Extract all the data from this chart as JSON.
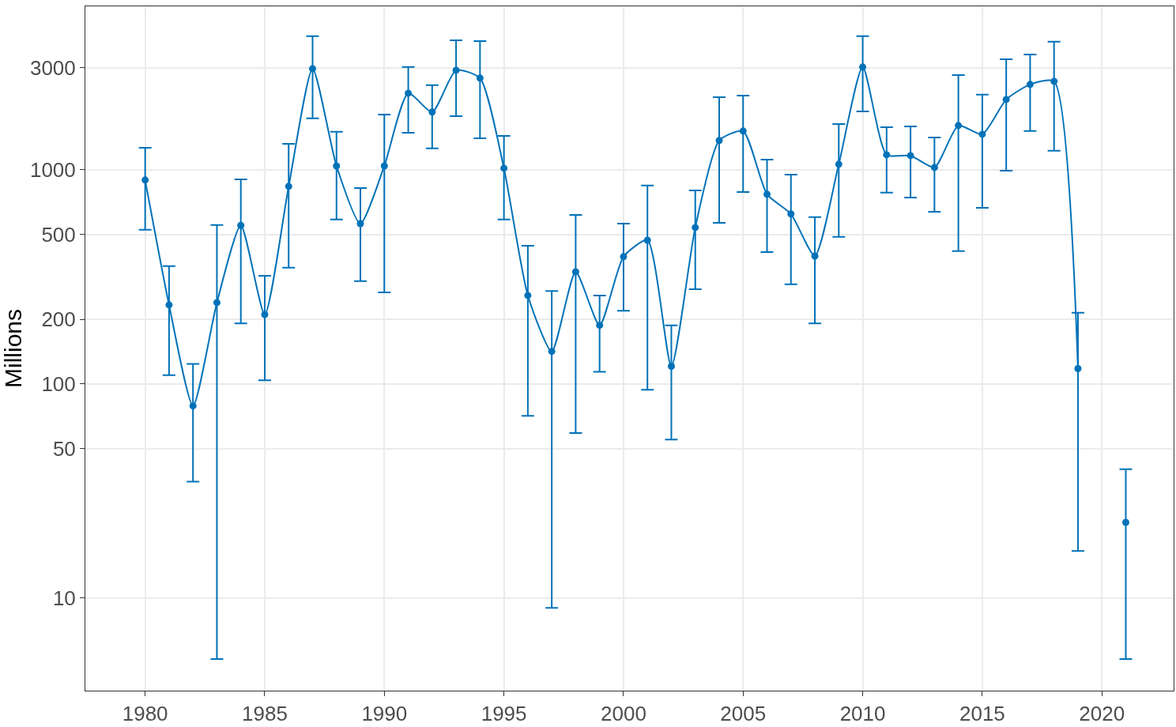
{
  "chart_data": {
    "type": "line",
    "ylabel": "Millions",
    "log": "y",
    "grid": true,
    "marker": "circle",
    "line_style": "solid",
    "x": [
      1980,
      1981,
      1982,
      1983,
      1984,
      1985,
      1986,
      1987,
      1988,
      1989,
      1990,
      1991,
      1992,
      1993,
      1994,
      1995,
      1996,
      1997,
      1998,
      1999,
      2000,
      2001,
      2002,
      2003,
      2004,
      2005,
      2006,
      2007,
      2008,
      2009,
      2010,
      2011,
      2012,
      2013,
      2014,
      2015,
      2016,
      2017,
      2018,
      2019,
      2020,
      2021
    ],
    "series": [
      {
        "color": "#0072b8",
        "values": [
          896,
          234,
          79,
          240,
          550,
          211,
          837,
          2967,
          1043,
          561,
          1043,
          2280,
          1860,
          2917,
          2680,
          1017,
          259,
          142,
          334,
          188,
          393,
          469,
          121,
          538,
          1370,
          1517,
          769,
          622,
          396,
          1062,
          3020,
          1175,
          1165,
          1026,
          1610,
          1466,
          2130,
          2504,
          2589,
          118,
          null,
          22.6
        ],
        "errors": [
          [
            525,
            1268
          ],
          [
            110,
            355
          ],
          [
            35,
            124
          ],
          [
            5.2,
            552
          ],
          [
            192,
            903
          ],
          [
            104,
            320
          ],
          [
            349,
            1324
          ],
          [
            1738,
            4205
          ],
          [
            586,
            1504
          ],
          [
            302,
            822
          ],
          [
            268,
            1812
          ],
          [
            1490,
            3020
          ],
          [
            1259,
            2483
          ],
          [
            1782,
            4027
          ],
          [
            1405,
            3994
          ],
          [
            586,
            1441
          ],
          [
            71,
            442
          ],
          [
            9,
            272
          ],
          [
            59,
            616
          ],
          [
            114,
            259
          ],
          [
            220,
            561
          ],
          [
            94,
            844
          ],
          [
            55,
            188
          ],
          [
            277,
            802
          ],
          [
            566,
            2185
          ],
          [
            788,
            2222
          ],
          [
            413,
            1117
          ],
          [
            292,
            950
          ],
          [
            192,
            601
          ],
          [
            486,
            1637
          ],
          [
            1875,
            4205
          ],
          [
            782,
            1581
          ],
          [
            743,
            1595
          ],
          [
            637,
            1417
          ],
          [
            417,
            2772
          ],
          [
            665,
            2243
          ],
          [
            991,
            3286
          ],
          [
            1517,
            3455
          ],
          [
            1227,
            3963
          ],
          [
            16.6,
            215
          ],
          null,
          [
            5.2,
            40
          ]
        ]
      }
    ],
    "xlim": [
      1977.5,
      2023
    ],
    "xticks": [
      1980,
      1985,
      1990,
      1995,
      2000,
      2005,
      2010,
      2015,
      2020
    ],
    "ylim": [
      3.7,
      5800
    ],
    "yticks": [
      10,
      50,
      100,
      200,
      500,
      1000,
      3000
    ]
  }
}
